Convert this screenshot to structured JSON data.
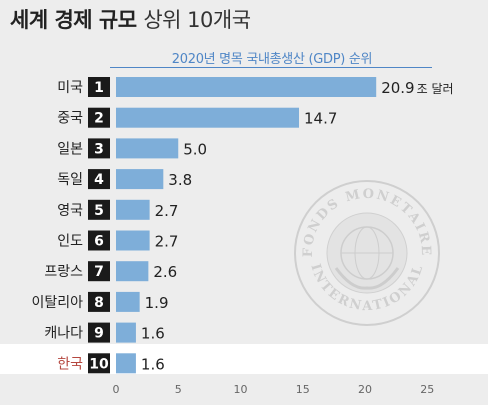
{
  "header": {
    "title_bold": "세계 경제 규모",
    "title_light": "상위 10개국"
  },
  "chart_data": {
    "type": "bar",
    "orientation": "horizontal",
    "title": "2020년 명목 국내총생산 (GDP) 순위",
    "categories": [
      "미국",
      "중국",
      "일본",
      "독일",
      "영국",
      "인도",
      "프랑스",
      "이탈리아",
      "캐나다",
      "한국"
    ],
    "ranks": [
      "1",
      "2",
      "3",
      "4",
      "5",
      "6",
      "7",
      "8",
      "9",
      "10"
    ],
    "values": [
      20.9,
      14.7,
      5.0,
      3.8,
      2.7,
      2.7,
      2.6,
      1.9,
      1.6,
      1.6
    ],
    "value_labels": [
      "20.9",
      "14.7",
      "5.0",
      "3.8",
      "2.7",
      "2.7",
      "2.6",
      "1.9",
      "1.6",
      "1.6"
    ],
    "first_value_unit": "조 달러",
    "xlim": [
      0,
      25
    ],
    "xticks": [
      0,
      5,
      10,
      15,
      20,
      25
    ],
    "highlight_category": "한국",
    "colors": {
      "bar": "#7eaed9",
      "rank_box": "#1a1a1a",
      "highlight_text": "#b5473f",
      "subtitle": "#4f86c6"
    }
  },
  "watermark": {
    "text_top": "FONDS MONETAIRE",
    "text_bottom": "INTERNATIONAL"
  }
}
